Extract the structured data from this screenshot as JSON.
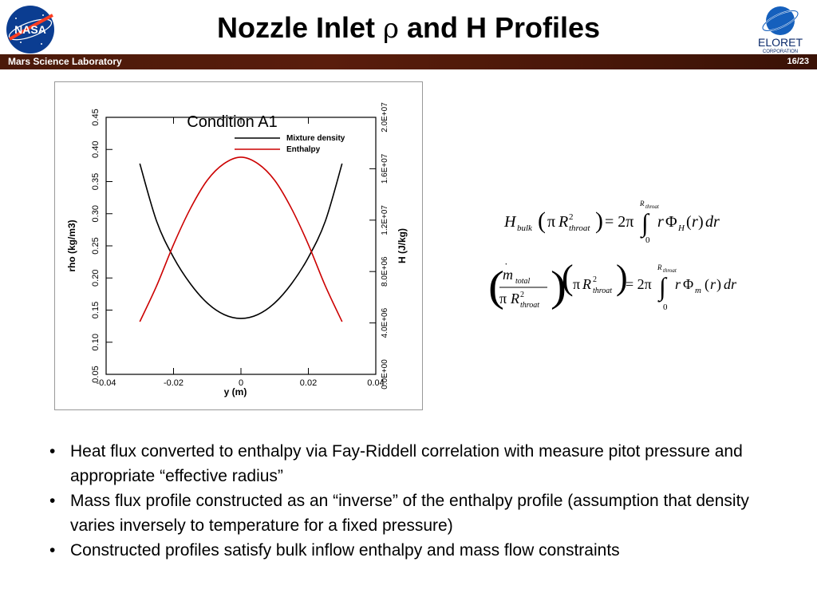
{
  "slide": {
    "title_pre": "Nozzle Inlet ",
    "title_rho": "ρ",
    "title_post": " and H Profiles",
    "org": "Mars Science Laboratory",
    "page": "16/23",
    "nasa_logo_text": "NASA",
    "eloret_logo_text": "ELORET",
    "eloret_logo_sub": "CORPORATION"
  },
  "chart_data": {
    "type": "line",
    "title": "Condition A1",
    "xlabel": "y (m)",
    "ylabel": "rho (kg/m3)",
    "y2label": "H (J/kg)",
    "xlim": [
      -0.04,
      0.04
    ],
    "ylim": [
      0.05,
      0.45
    ],
    "y2lim": [
      0,
      20000000
    ],
    "xticks": [
      "-0.04",
      "-0.02",
      "0",
      "0.02",
      "0.04"
    ],
    "xtick_values": [
      -0.04,
      -0.02,
      0,
      0.02,
      0.04
    ],
    "yticks": [
      "0.05",
      "0.10",
      "0.15",
      "0.20",
      "0.25",
      "0.30",
      "0.35",
      "0.40",
      "0.45"
    ],
    "ytick_values": [
      0.05,
      0.1,
      0.15,
      0.2,
      0.25,
      0.3,
      0.35,
      0.4,
      0.45
    ],
    "y2ticks": [
      "0.0E+00",
      "4.0E+06",
      "8.0E+06",
      "1.2E+07",
      "1.6E+07",
      "2.0E+07"
    ],
    "y2tick_values": [
      0,
      4000000,
      8000000,
      12000000,
      16000000,
      20000000
    ],
    "legend_position": "top-right",
    "series": [
      {
        "name": "Mixture density",
        "axis": "left",
        "color": "#000000",
        "x": [
          -0.03,
          -0.025,
          -0.02,
          -0.015,
          -0.01,
          -0.005,
          0,
          0.005,
          0.01,
          0.015,
          0.02,
          0.025,
          0.03
        ],
        "y": [
          0.378,
          0.288,
          0.232,
          0.191,
          0.161,
          0.143,
          0.137,
          0.143,
          0.161,
          0.191,
          0.232,
          0.288,
          0.378
        ]
      },
      {
        "name": "Enthalpy",
        "axis": "right",
        "color": "#cc0000",
        "x": [
          -0.03,
          -0.025,
          -0.02,
          -0.015,
          -0.01,
          -0.005,
          0,
          0.005,
          0.01,
          0.015,
          0.02,
          0.025,
          0.03
        ],
        "y": [
          4100000,
          6900000,
          10100000,
          12900000,
          15100000,
          16400000,
          16900000,
          16400000,
          15100000,
          12900000,
          10100000,
          6900000,
          4100000
        ]
      }
    ]
  },
  "equations": {
    "eq1": "H_bulk (π R²_throat) = 2π ∫₀^R_throat r Φ_H(r) dr",
    "eq2": "(ṁ_total / π R²_throat)(π R²_throat) = 2π ∫₀^R_throat r Φ_m(r) dr"
  },
  "bullets": [
    "Heat flux converted to enthalpy via Fay-Riddell correlation with measure pitot pressure and appropriate “effective radius”",
    "Mass flux profile constructed as an “inverse” of the enthalpy profile (assumption that density varies inversely to temperature for a fixed pressure)",
    "Constructed profiles satisfy bulk inflow enthalpy and mass flow constraints"
  ]
}
